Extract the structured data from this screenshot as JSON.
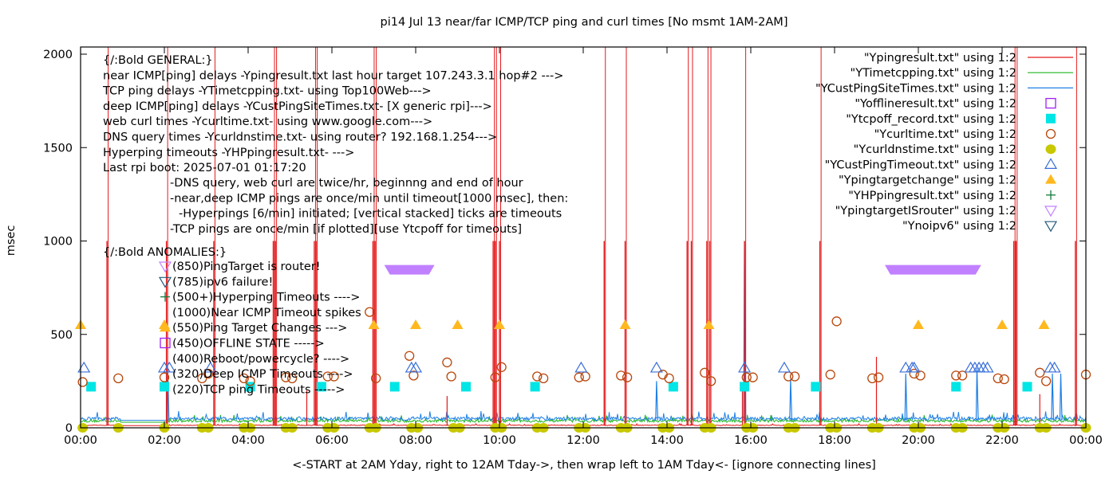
{
  "chart_data": {
    "type": "line",
    "title": "pi14 Jul 13  near/far ICMP/TCP ping and curl times [No msmt 1AM-2AM]",
    "xlabel": "<-START at 2AM Yday, right to 12AM Tday->, then wrap left to 1AM Tday<- [ignore connecting lines]",
    "ylabel": "msec",
    "xlim_hours": [
      0,
      24
    ],
    "ylim": [
      0,
      2000
    ],
    "grid": false,
    "legend_placement": "top-right",
    "x_ticks": [
      "00:00",
      "02:00",
      "04:00",
      "06:00",
      "08:00",
      "10:00",
      "12:00",
      "14:00",
      "16:00",
      "18:00",
      "20:00",
      "22:00",
      "00:00"
    ],
    "y_ticks": [
      "0",
      "500",
      "1000",
      "1500",
      "2000"
    ],
    "annotations_general": [
      "{/:Bold GENERAL:}",
      "near ICMP[ping] delays -Ypingresult.txt last hour target 107.243.3.1 hop#2 --->",
      "TCP ping delays -YTimetcpping.txt- using Top100Web--->",
      "deep ICMP[ping] delays -YCustPingSiteTimes.txt- [X generic rpi]--->",
      "web curl times -Ycurltime.txt- using www.google.com--->",
      "DNS query times -Ycurldnstime.txt- using router? 192.168.1.254--->",
      "Hyperping timeouts -YHPpingresult.txt- --->",
      "Last rpi boot: 2025-07-01 01:17:20"
    ],
    "annotations_notes": [
      "-DNS query, web curl are twice/hr, beginnng and end of hour",
      "-near,deep ICMP pings are once/min until timeout[1000 msec], then:",
      "-Hyperpings [6/min] initiated; [vertical stacked] ticks are timeouts",
      "-TCP pings are once/min [if plotted][use Ytcpoff for timeouts]"
    ],
    "annotations_anomalies_title": "{/:Bold ANOMALIES:}",
    "annotations_anomalies": [
      {
        "marker": "tri-down-violet",
        "text": "(850)PingTarget is router!"
      },
      {
        "marker": "tri-down-navy",
        "text": "(785)ipv6 failure!"
      },
      {
        "marker": "plus-green",
        "text": "(500+)Hyperping Timeouts ---->"
      },
      {
        "marker": "none",
        "text": "(1000)Near ICMP Timeout spikes"
      },
      {
        "marker": "tri-up-orange",
        "text": "(550)Ping Target Changes --->"
      },
      {
        "marker": "square-open-purple",
        "text": "(450)OFFLINE STATE ----->"
      },
      {
        "marker": "none",
        "text": "(400)Reboot/powercycle? ---->"
      },
      {
        "marker": "none",
        "text": "(320)Deep ICMP Timeouts ---->"
      },
      {
        "marker": "none",
        "text": "(220)TCP ping Timeouts ----->"
      }
    ],
    "legend": [
      {
        "label": "\"Ypingresult.txt\" using 1:2",
        "style": "line",
        "color": "#e41a1c"
      },
      {
        "label": "\"YTimetcpping.txt\" using 1:2",
        "style": "line",
        "color": "#1fb61f"
      },
      {
        "label": "\"YCustPingSiteTimes.txt\" using 1:2",
        "style": "line",
        "color": "#1e7fe6"
      },
      {
        "label": "\"Yofflineresult.txt\" using 1:2",
        "style": "square-open",
        "color": "#a020f0"
      },
      {
        "label": "\"Ytcpoff_record.txt\" using 1:2",
        "style": "square-filled",
        "color": "#00e5e5"
      },
      {
        "label": "\"Ycurltime.txt\" using 1:2",
        "style": "circle-open",
        "color": "#b8460b"
      },
      {
        "label": "\"Ycurldnstime.txt\" using 1:2",
        "style": "circle-filled",
        "color": "#c8c800"
      },
      {
        "label": "\"YCustPingTimeout.txt\" using 1:2",
        "style": "tri-up-open",
        "color": "#3a6fd8"
      },
      {
        "label": "\"Ypingtargetchange\" using 1:2",
        "style": "tri-up-filled",
        "color": "#ffb81e"
      },
      {
        "label": "\"YHPpingresult.txt\" using 1:2",
        "style": "plus",
        "color": "#137a3c"
      },
      {
        "label": "\"YpingtargetISrouter\" using 1:2",
        "style": "tri-down-open",
        "color": "#c080ff"
      },
      {
        "label": "\"Ynoipv6\" using 1:2",
        "style": "tri-down-open",
        "color": "#215a7a"
      }
    ],
    "series": [
      {
        "name": "Ypingresult.txt",
        "baseline_ms": 12,
        "spikes_hours": [
          0.63,
          2.05,
          3.18,
          4.6,
          4.65,
          5.58,
          5.62,
          6.98,
          7.03,
          9.85,
          9.9,
          10.0,
          12.5,
          13.0,
          14.48,
          14.58,
          14.95,
          15.02,
          15.85,
          17.65,
          22.28,
          22.33,
          23.75
        ],
        "spike_height_ms": 1000,
        "small_spikes": [
          {
            "x": 5.4,
            "y": 200
          },
          {
            "x": 8.75,
            "y": 170
          },
          {
            "x": 15.8,
            "y": 200
          },
          {
            "x": 19.0,
            "y": 380
          },
          {
            "x": 22.9,
            "y": 180
          }
        ]
      },
      {
        "name": "YTimetcpping.txt",
        "baseline_ms": 30,
        "noise_ms": 40
      },
      {
        "name": "YCustPingSiteTimes.txt",
        "baseline_ms": 40,
        "noise_ms": 50,
        "spikes": [
          {
            "x": 2.08,
            "y": 320
          },
          {
            "x": 13.75,
            "y": 250
          },
          {
            "x": 15.85,
            "y": 1000
          },
          {
            "x": 16.95,
            "y": 260
          },
          {
            "x": 19.7,
            "y": 290
          },
          {
            "x": 21.4,
            "y": 320
          },
          {
            "x": 23.2,
            "y": 290
          },
          {
            "x": 23.4,
            "y": 290
          }
        ]
      },
      {
        "name": "Ytcpoff_record.txt",
        "points": [
          {
            "x": 0.25,
            "y": 220
          },
          {
            "x": 2.0,
            "y": 220
          },
          {
            "x": 4.05,
            "y": 220
          },
          {
            "x": 5.75,
            "y": 220
          },
          {
            "x": 7.5,
            "y": 220
          },
          {
            "x": 9.2,
            "y": 220
          },
          {
            "x": 10.85,
            "y": 220
          },
          {
            "x": 14.15,
            "y": 220
          },
          {
            "x": 15.85,
            "y": 220
          },
          {
            "x": 17.55,
            "y": 220
          },
          {
            "x": 20.9,
            "y": 220
          },
          {
            "x": 22.6,
            "y": 220
          }
        ]
      },
      {
        "name": "Ycurltime.txt",
        "points": [
          {
            "x": 0.05,
            "y": 245
          },
          {
            "x": 0.9,
            "y": 265
          },
          {
            "x": 2.0,
            "y": 270
          },
          {
            "x": 2.9,
            "y": 265
          },
          {
            "x": 3.05,
            "y": 290
          },
          {
            "x": 3.9,
            "y": 265
          },
          {
            "x": 4.05,
            "y": 250
          },
          {
            "x": 4.9,
            "y": 270
          },
          {
            "x": 5.05,
            "y": 265
          },
          {
            "x": 5.9,
            "y": 275
          },
          {
            "x": 6.05,
            "y": 275
          },
          {
            "x": 6.9,
            "y": 620
          },
          {
            "x": 7.05,
            "y": 265
          },
          {
            "x": 7.85,
            "y": 385
          },
          {
            "x": 7.95,
            "y": 280
          },
          {
            "x": 8.75,
            "y": 350
          },
          {
            "x": 8.85,
            "y": 275
          },
          {
            "x": 9.9,
            "y": 270
          },
          {
            "x": 10.05,
            "y": 325
          },
          {
            "x": 10.9,
            "y": 275
          },
          {
            "x": 11.05,
            "y": 265
          },
          {
            "x": 11.9,
            "y": 270
          },
          {
            "x": 12.05,
            "y": 275
          },
          {
            "x": 12.9,
            "y": 280
          },
          {
            "x": 13.05,
            "y": 270
          },
          {
            "x": 13.9,
            "y": 285
          },
          {
            "x": 14.05,
            "y": 265
          },
          {
            "x": 14.9,
            "y": 295
          },
          {
            "x": 15.05,
            "y": 250
          },
          {
            "x": 15.9,
            "y": 270
          },
          {
            "x": 16.05,
            "y": 270
          },
          {
            "x": 16.9,
            "y": 275
          },
          {
            "x": 17.05,
            "y": 275
          },
          {
            "x": 17.9,
            "y": 285
          },
          {
            "x": 18.05,
            "y": 570
          },
          {
            "x": 18.9,
            "y": 265
          },
          {
            "x": 19.05,
            "y": 270
          },
          {
            "x": 19.9,
            "y": 290
          },
          {
            "x": 20.05,
            "y": 280
          },
          {
            "x": 20.9,
            "y": 280
          },
          {
            "x": 21.05,
            "y": 280
          },
          {
            "x": 21.9,
            "y": 265
          },
          {
            "x": 22.05,
            "y": 260
          },
          {
            "x": 22.9,
            "y": 295
          },
          {
            "x": 23.05,
            "y": 250
          },
          {
            "x": 24.0,
            "y": 285
          }
        ]
      },
      {
        "name": "Ycurldnstime.txt",
        "points_hours": [
          0.05,
          0.9,
          2.0,
          2.9,
          3.05,
          3.9,
          4.05,
          4.9,
          5.05,
          5.9,
          6.05,
          6.9,
          7.05,
          7.9,
          8.05,
          8.9,
          9.05,
          9.9,
          10.05,
          10.9,
          11.05,
          11.9,
          12.05,
          12.9,
          13.05,
          13.9,
          14.05,
          14.9,
          15.05,
          15.9,
          16.05,
          16.9,
          17.05,
          17.9,
          18.05,
          18.9,
          19.05,
          19.9,
          20.05,
          20.9,
          21.05,
          21.9,
          22.05,
          22.9,
          23.05,
          24.0
        ],
        "y": 0
      },
      {
        "name": "YCustPingTimeout.txt",
        "points_hours": [
          0.08,
          2.0,
          2.12,
          3.1,
          7.9,
          8.0,
          11.95,
          13.75,
          15.85,
          16.8,
          19.7,
          19.85,
          19.9,
          21.25,
          21.35,
          21.45,
          21.55,
          21.65,
          23.15,
          23.25
        ],
        "y": 320
      },
      {
        "name": "Ypingtargetchange",
        "points_hours": [
          0.0,
          2.0,
          7.0,
          8.0,
          9.0,
          10.0,
          13.0,
          15.0,
          20.0,
          22.0,
          23.0
        ],
        "y": 550
      },
      {
        "name": "YpingtargetISrouter",
        "ranges_hours": [
          [
            7.25,
            8.45
          ],
          [
            19.2,
            21.5
          ]
        ],
        "y": 850
      }
    ]
  }
}
